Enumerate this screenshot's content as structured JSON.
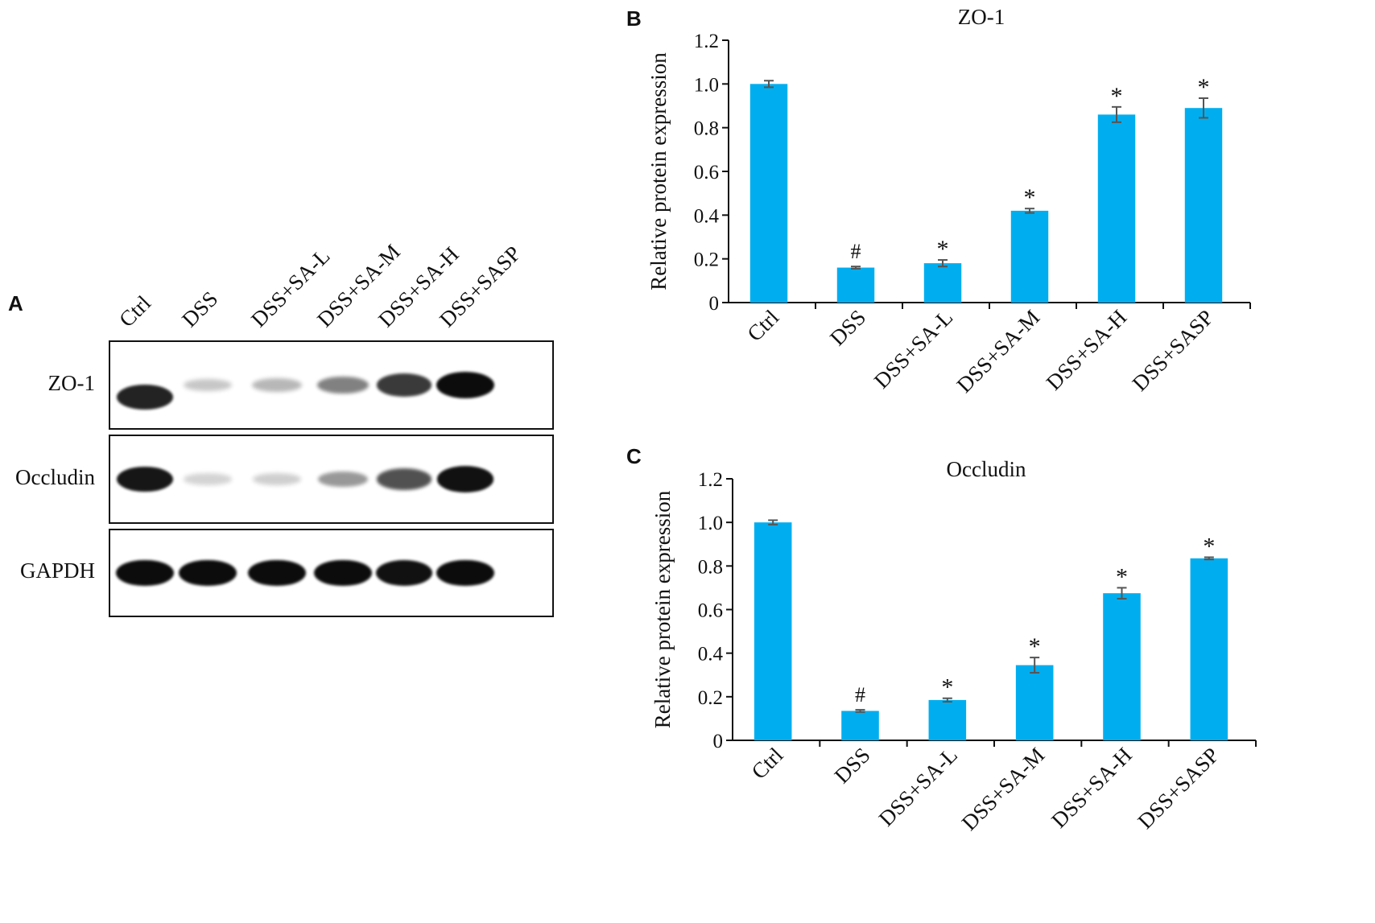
{
  "panels": {
    "a_label": "A",
    "b_label": "B",
    "c_label": "C"
  },
  "blot": {
    "lanes": [
      "Ctrl",
      "DSS",
      "DSS+SA-L",
      "DSS+SA-M",
      "DSS+SA-H",
      "DSS+SASP"
    ],
    "rows": [
      {
        "label": "ZO-1",
        "intensity": [
          0.85,
          0.15,
          0.22,
          0.45,
          0.75,
          0.95
        ]
      },
      {
        "label": "Occludin",
        "intensity": [
          0.9,
          0.1,
          0.12,
          0.35,
          0.65,
          0.92
        ]
      },
      {
        "label": "GAPDH",
        "intensity": [
          0.95,
          0.95,
          0.95,
          0.95,
          0.92,
          0.95
        ]
      }
    ]
  },
  "chart_data": [
    {
      "type": "bar",
      "title": "ZO-1",
      "ylabel": "Relative protein expression",
      "xlabel": "",
      "categories": [
        "Ctrl",
        "DSS",
        "DSS+SA-L",
        "DSS+SA-M",
        "DSS+SA-H",
        "DSS+SASP"
      ],
      "values": [
        1.0,
        0.16,
        0.18,
        0.42,
        0.86,
        0.89
      ],
      "errors": [
        0.015,
        0.005,
        0.015,
        0.01,
        0.035,
        0.045
      ],
      "annotations": [
        "",
        "#",
        "*",
        "*",
        "*",
        "*"
      ],
      "ylim": [
        0,
        1.2
      ],
      "yticks": [
        "0",
        "0.2",
        "0.4",
        "0.6",
        "0.8",
        "1.0",
        "1.2"
      ],
      "bar_color": "#00AEEF",
      "grid": false
    },
    {
      "type": "bar",
      "title": "Occludin",
      "ylabel": "Relative protein expression",
      "xlabel": "",
      "categories": [
        "Ctrl",
        "DSS",
        "DSS+SA-L",
        "DSS+SA-M",
        "DSS+SA-H",
        "DSS+SASP"
      ],
      "values": [
        1.0,
        0.135,
        0.185,
        0.345,
        0.675,
        0.835
      ],
      "errors": [
        0.01,
        0.005,
        0.008,
        0.035,
        0.025,
        0.005
      ],
      "annotations": [
        "",
        "#",
        "*",
        "*",
        "*",
        "*"
      ],
      "ylim": [
        0,
        1.2
      ],
      "yticks": [
        "0",
        "0.2",
        "0.4",
        "0.6",
        "0.8",
        "1.0",
        "1.2"
      ],
      "bar_color": "#00AEEF",
      "grid": false
    }
  ]
}
